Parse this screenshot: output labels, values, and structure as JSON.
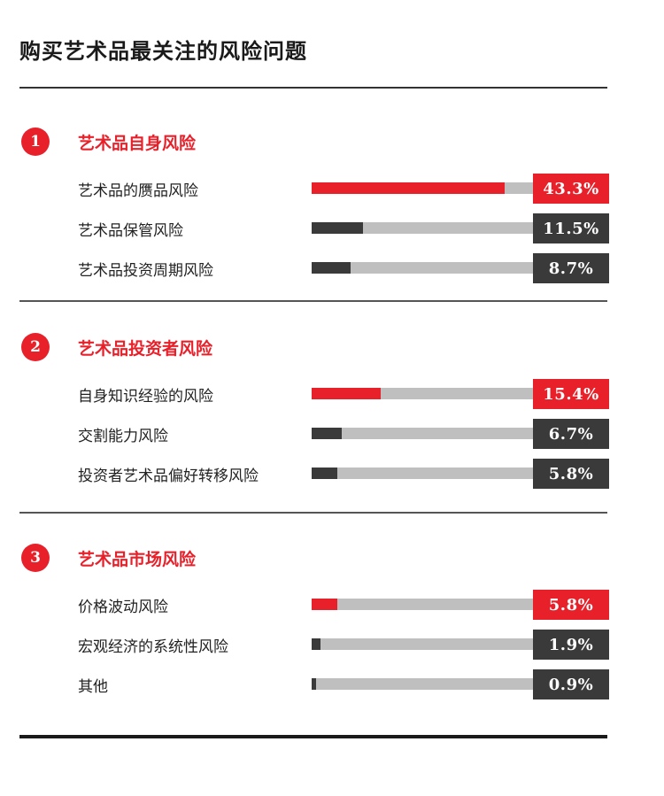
{
  "title": "购买艺术品最关注的风险问题",
  "colors": {
    "accent": "#e8202a",
    "dark": "#3a3a3a",
    "track": "#bfbfbf"
  },
  "chart_data": {
    "type": "bar",
    "unit": "%",
    "xlim": [
      0,
      50
    ],
    "sections": [
      {
        "number": "1",
        "title": "艺术品自身风险",
        "items": [
          {
            "label": "艺术品的赝品风险",
            "value": 43.3,
            "value_label": "43.3%",
            "highlight": true
          },
          {
            "label": "艺术品保管风险",
            "value": 11.5,
            "value_label": "11.5%",
            "highlight": false
          },
          {
            "label": "艺术品投资周期风险",
            "value": 8.7,
            "value_label": "8.7%",
            "highlight": false
          }
        ]
      },
      {
        "number": "2",
        "title": "艺术品投资者风险",
        "items": [
          {
            "label": "自身知识经验的风险",
            "value": 15.4,
            "value_label": "15.4%",
            "highlight": true
          },
          {
            "label": "交割能力风险",
            "value": 6.7,
            "value_label": "6.7%",
            "highlight": false
          },
          {
            "label": "投资者艺术品偏好转移风险",
            "value": 5.8,
            "value_label": "5.8%",
            "highlight": false
          }
        ]
      },
      {
        "number": "3",
        "title": "艺术品市场风险",
        "items": [
          {
            "label": "价格波动风险",
            "value": 5.8,
            "value_label": "5.8%",
            "highlight": true
          },
          {
            "label": "宏观经济的系统性风险",
            "value": 1.9,
            "value_label": "1.9%",
            "highlight": false
          },
          {
            "label": "其他",
            "value": 0.9,
            "value_label": "0.9%",
            "highlight": false
          }
        ]
      }
    ]
  }
}
